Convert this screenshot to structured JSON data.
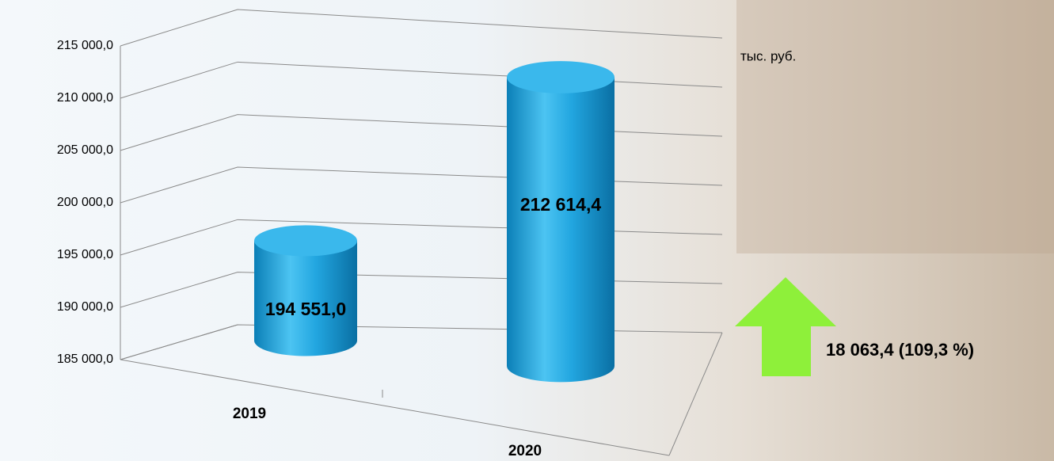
{
  "chart_data": {
    "type": "bar",
    "shape": "cylinder",
    "categories": [
      "2019",
      "2020"
    ],
    "values": [
      194551.0,
      212614.4
    ],
    "value_labels": [
      "194 551,0",
      "212 614,4"
    ],
    "color": "#1fa2dc",
    "ylim": [
      185000,
      215000
    ],
    "yticks": [
      {
        "value": 185000,
        "label": "185 000,0"
      },
      {
        "value": 190000,
        "label": "190 000,0"
      },
      {
        "value": 195000,
        "label": "195 000,0"
      },
      {
        "value": 200000,
        "label": "200 000,0"
      },
      {
        "value": 205000,
        "label": "205 000,0"
      },
      {
        "value": 210000,
        "label": "210 000,0"
      },
      {
        "value": 215000,
        "label": "215 000,0"
      }
    ],
    "grid": true,
    "unit": "тыс. руб.",
    "annotation": "18 063,4 (109,3 %)",
    "arrow_color": "#8ef03a"
  }
}
